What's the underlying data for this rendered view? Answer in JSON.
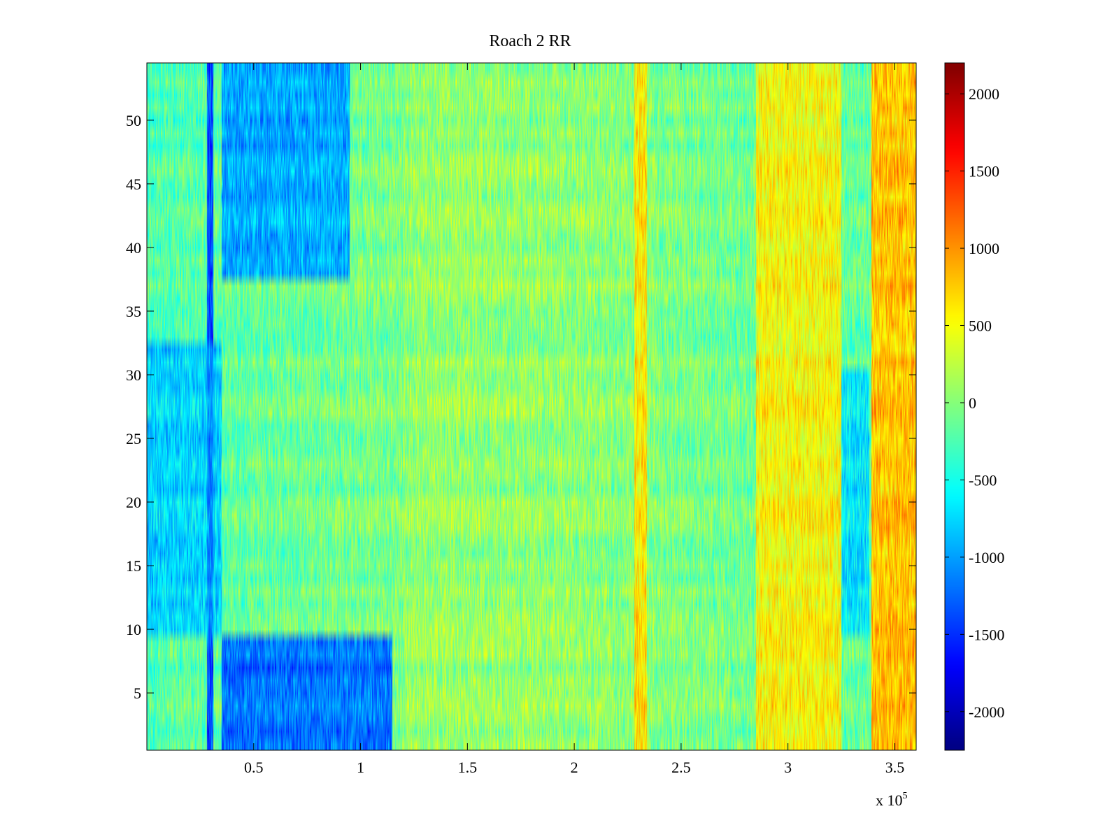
{
  "chart_data": {
    "type": "heatmap",
    "title": "Roach 2 RR",
    "xlabel": "",
    "ylabel": "",
    "x_exponent_label": "x 10",
    "x_exponent_power": "5",
    "xlim": [
      0,
      3.6
    ],
    "ylim": [
      0.5,
      54.5
    ],
    "x_ticks": [
      0.5,
      1,
      1.5,
      2,
      2.5,
      3,
      3.5
    ],
    "x_tick_labels": [
      "0.5",
      "1",
      "1.5",
      "2",
      "2.5",
      "3",
      "3.5"
    ],
    "y_ticks": [
      5,
      10,
      15,
      20,
      25,
      30,
      35,
      40,
      45,
      50
    ],
    "y_tick_labels": [
      "5",
      "10",
      "15",
      "20",
      "25",
      "30",
      "35",
      "40",
      "45",
      "50"
    ],
    "rows": 54,
    "colormap": "jet",
    "colorbar": {
      "clim": [
        -2250,
        2200
      ],
      "ticks": [
        -2000,
        -1500,
        -1000,
        -500,
        0,
        500,
        1000,
        1500,
        2000
      ],
      "tick_labels": [
        "-2000",
        "-1500",
        "-1000",
        "-500",
        "0",
        "500",
        "1000",
        "1500",
        "2000"
      ]
    },
    "features": [
      {
        "description": "strong negative band",
        "x_range": [
          0.28,
          0.31
        ],
        "y_range": [
          0.5,
          54.5
        ],
        "value": -1900
      },
      {
        "description": "negative region top rows",
        "x_range": [
          0.35,
          0.95
        ],
        "y_range": [
          38,
          54.5
        ],
        "value": -1300
      },
      {
        "description": "negative region bottom rows",
        "x_range": [
          0.35,
          1.15
        ],
        "y_range": [
          0.5,
          9.5
        ],
        "value": -1700
      },
      {
        "description": "negative region left columns",
        "x_range": [
          0.0,
          0.35
        ],
        "y_range": [
          10,
          32
        ],
        "value": -1000
      },
      {
        "description": "positive band",
        "x_range": [
          2.28,
          2.34
        ],
        "y_range": [
          0.5,
          54.5
        ],
        "value": 900
      },
      {
        "description": "positive region right",
        "x_range": [
          2.85,
          3.25
        ],
        "y_range": [
          0.5,
          54.5
        ],
        "value": 800
      },
      {
        "description": "negative band right",
        "x_range": [
          3.25,
          3.38
        ],
        "y_range": [
          10,
          30
        ],
        "value": -900
      },
      {
        "description": "positive band far right",
        "x_range": [
          3.39,
          3.6
        ],
        "y_range": [
          0.5,
          54.5
        ],
        "value": 1200
      }
    ]
  }
}
